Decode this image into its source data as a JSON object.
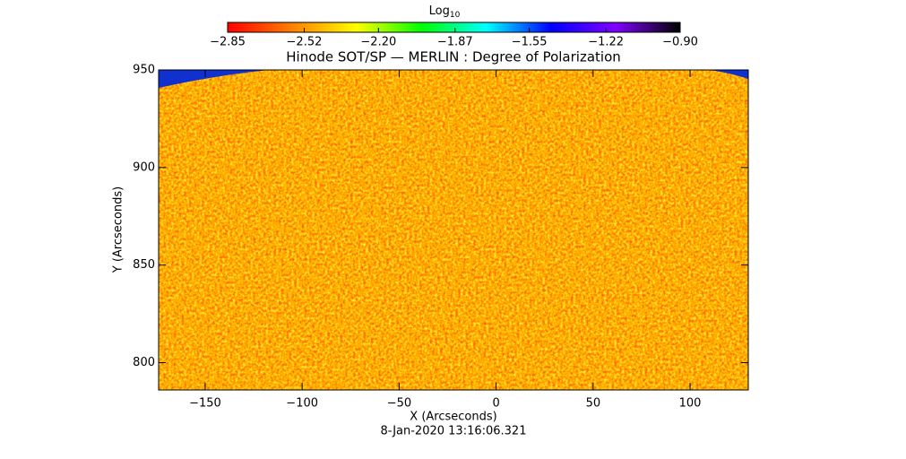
{
  "chart_data": {
    "type": "image",
    "title": "Hinode SOT/SP — MERLIN : Degree of Polarization",
    "x_label": "X (Arcseconds)",
    "y_label": "Y (Arcseconds)",
    "date": "8-Jan-2020 13:16:06.321",
    "xlim": [
      -174,
      130
    ],
    "ylim": [
      786,
      950
    ],
    "xticks": [
      -150,
      -100,
      -50,
      0,
      50,
      100
    ],
    "yticks": [
      800,
      850,
      900,
      950
    ],
    "colorbar": {
      "label": "Log",
      "label_subscript": "10",
      "clim": [
        -2.85,
        -0.9
      ],
      "ticks": [
        -2.85,
        -2.52,
        {
          "value": -2.2,
          "label": "-2.20"
        },
        -1.87,
        -1.55,
        -1.22,
        {
          "value": -0.9,
          "label": "-0.90"
        }
      ],
      "colors": [
        "#ff0000",
        "#ff8000",
        "#ffff00",
        "#00ff00",
        "#00ffff",
        "#0000ff",
        "#8000ff",
        "#000000"
      ]
    }
  }
}
